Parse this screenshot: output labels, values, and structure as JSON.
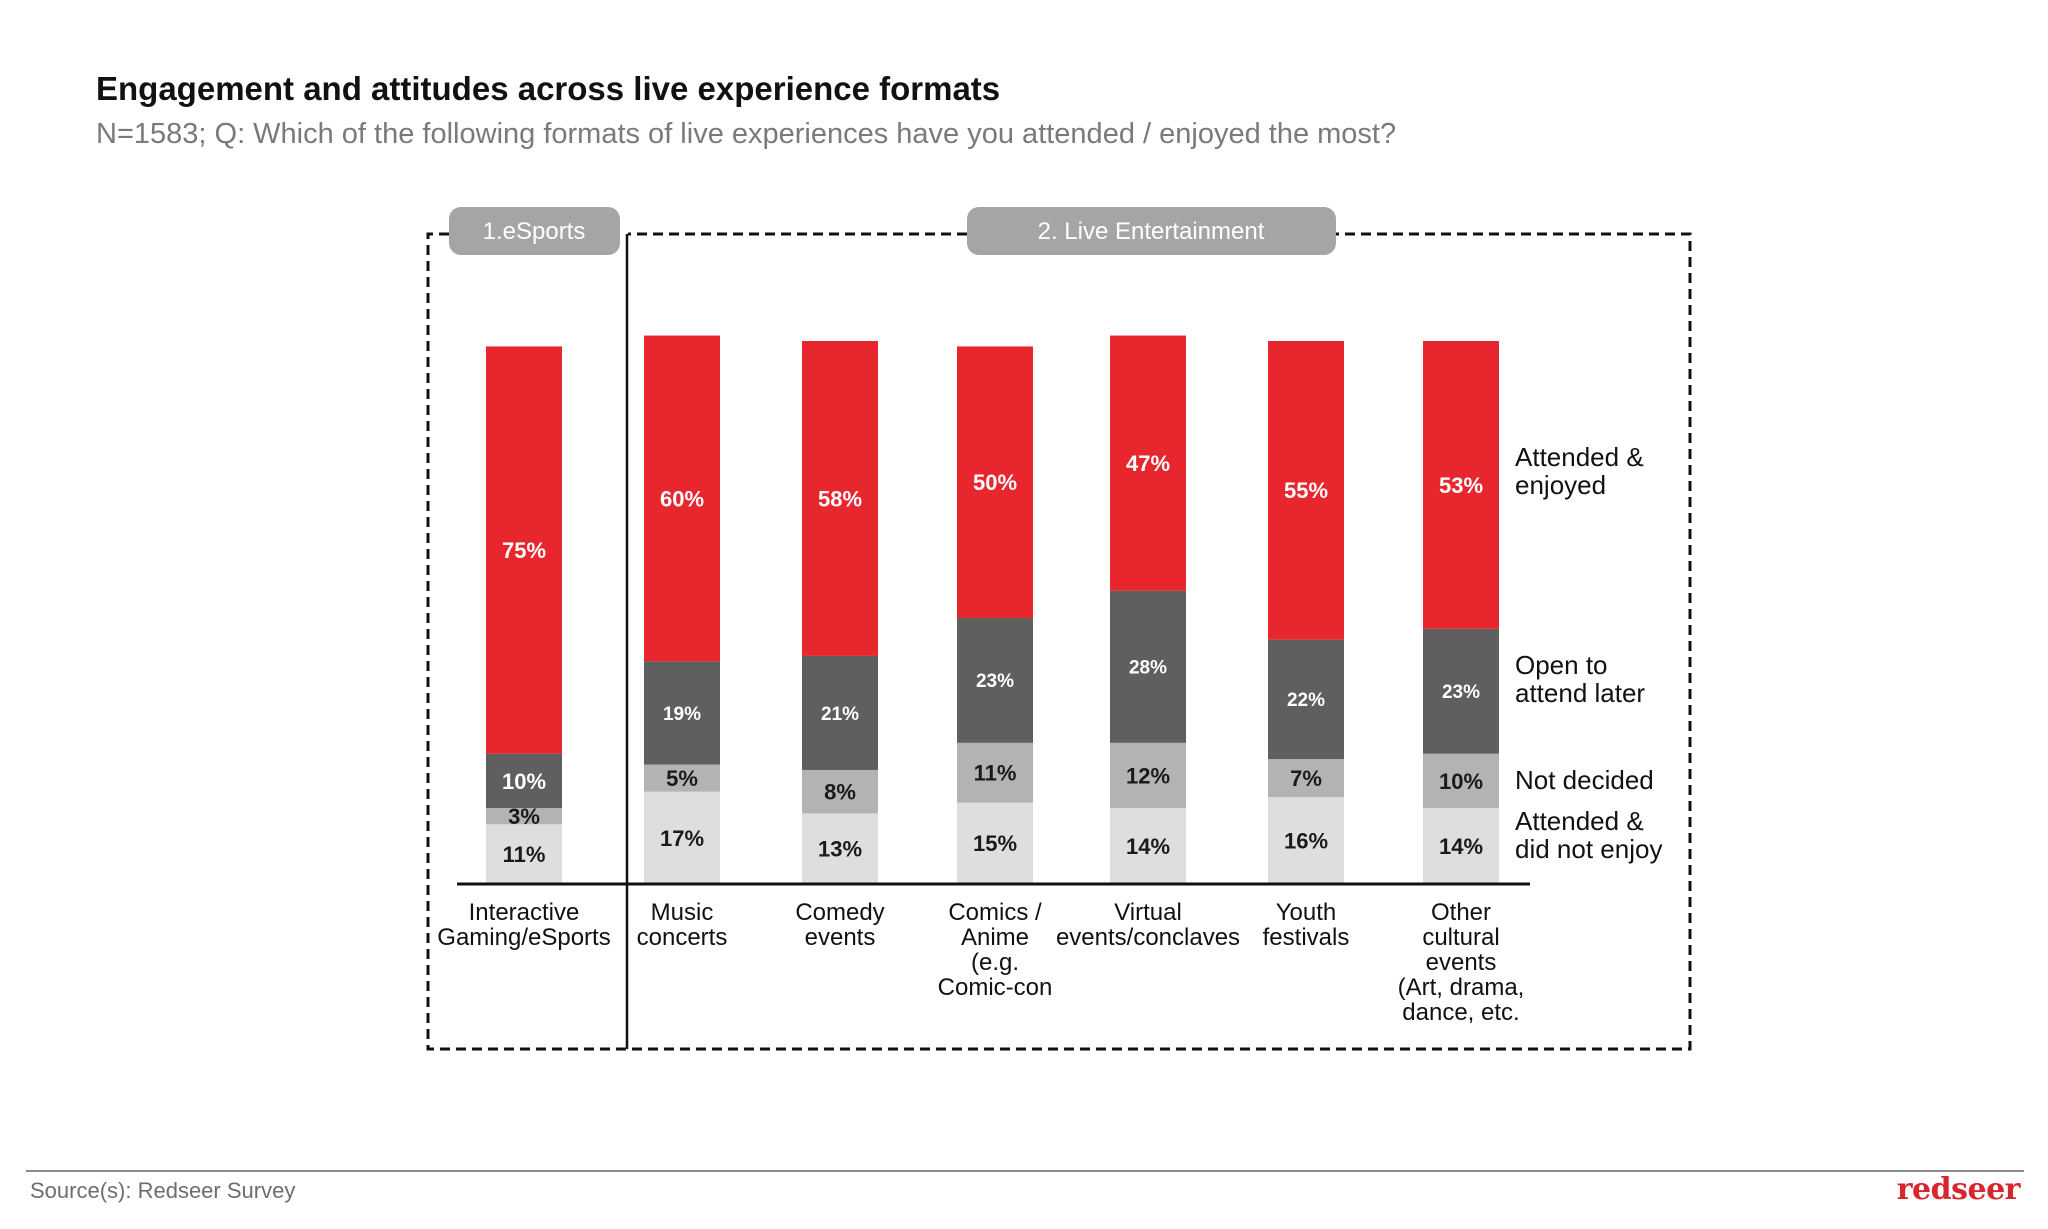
{
  "title": "Engagement and attitudes across live experience formats",
  "subtitle": "N=1583; Q: Which of the following formats of live experiences have you attended / enjoyed the most?",
  "footer": {
    "source": "Source(s): Redseer Survey",
    "brand": "redseer"
  },
  "colors": {
    "attended_enjoyed": "#e8262e",
    "open_later": "#5f5f5f",
    "not_decided": "#b3b3b3",
    "did_not_enjoy": "#dedede",
    "label_light": "#ffffff",
    "label_dark": "#1a1a1a"
  },
  "chart_data": {
    "type": "bar",
    "stacked": true,
    "normalized_percent": true,
    "groups": [
      {
        "label": "1.eSports",
        "categories": [
          "Interactive Gaming/eSports"
        ]
      },
      {
        "label": "2. Live Entertainment",
        "categories": [
          "Music concerts",
          "Comedy events",
          "Comics / Anime (e.g. Comic-con",
          "Virtual events/conclaves",
          "Youth festivals",
          "Other cultural events (Art, drama, dance, etc."
        ]
      }
    ],
    "categories": [
      {
        "id": "esports",
        "lines": [
          "Interactive",
          "Gaming/eSports"
        ]
      },
      {
        "id": "music",
        "lines": [
          "Music",
          "concerts"
        ]
      },
      {
        "id": "comedy",
        "lines": [
          "Comedy",
          "events"
        ]
      },
      {
        "id": "comics",
        "lines": [
          "Comics /",
          "Anime",
          "(e.g.",
          "Comic-con"
        ]
      },
      {
        "id": "virtual",
        "lines": [
          "Virtual",
          "events/conclaves"
        ]
      },
      {
        "id": "youth",
        "lines": [
          "Youth",
          "festivals"
        ]
      },
      {
        "id": "other",
        "lines": [
          "Other",
          "cultural",
          "events",
          "(Art, drama,",
          "dance, etc."
        ]
      }
    ],
    "series": [
      {
        "key": "did_not_enjoy",
        "name": "Attended & did not enjoy",
        "legend_lines": [
          "Attended &",
          "did not enjoy"
        ],
        "values": [
          11,
          17,
          13,
          15,
          14,
          16,
          14
        ],
        "labels": [
          "11%",
          "17%",
          "13%",
          "15%",
          "14%",
          "16%",
          "14%"
        ]
      },
      {
        "key": "not_decided",
        "name": "Not decided",
        "legend_lines": [
          "Not decided"
        ],
        "values": [
          3,
          5,
          8,
          11,
          12,
          7,
          10
        ],
        "labels": [
          "3%",
          "5%",
          "8%",
          "11%",
          "12%",
          "7%",
          "10%"
        ]
      },
      {
        "key": "open_later",
        "name": "Open to attend later",
        "legend_lines": [
          "Open to",
          "attend later"
        ],
        "values": [
          10,
          19,
          21,
          23,
          28,
          22,
          23
        ],
        "labels": [
          "10%",
          "19%",
          "21%",
          "23%",
          "28%",
          "22%",
          "23%"
        ]
      },
      {
        "key": "attended_enjoyed",
        "name": "Attended & enjoyed",
        "legend_lines": [
          "Attended &",
          "enjoyed"
        ],
        "values": [
          75,
          60,
          58,
          50,
          47,
          55,
          53
        ],
        "labels": [
          "75%",
          "60%",
          "58%",
          "50%",
          "47%",
          "55%",
          "53%"
        ]
      }
    ],
    "xlabel": "",
    "ylabel": "",
    "ylim": [
      0,
      100
    ],
    "grid": false,
    "legend_position": "right"
  }
}
